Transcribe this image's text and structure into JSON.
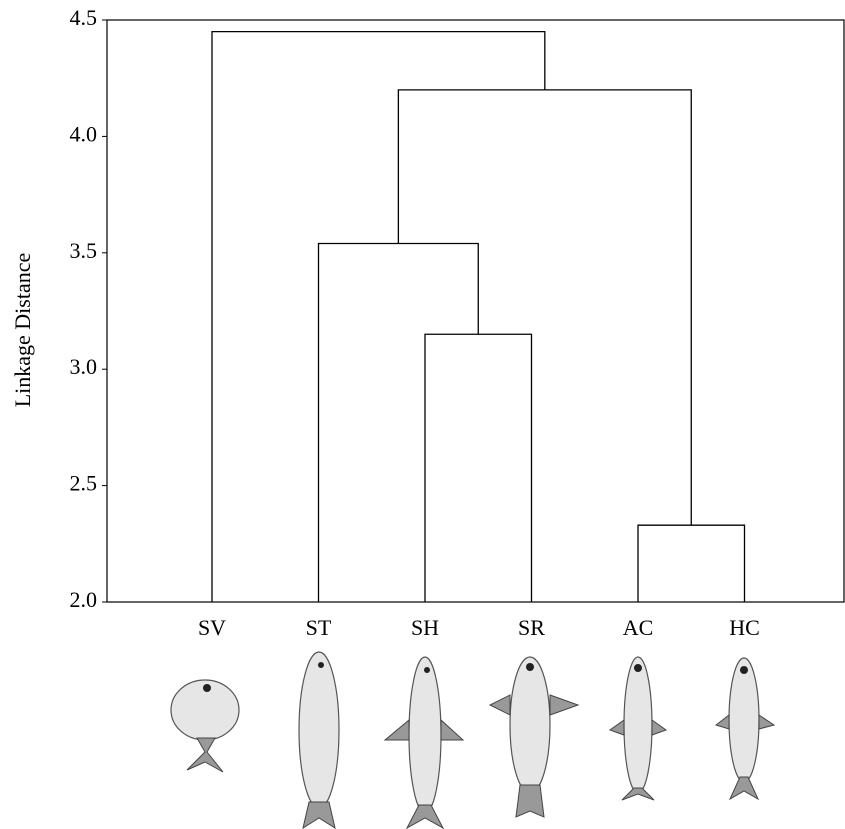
{
  "chart_data": {
    "type": "dendrogram",
    "y_label": "Linkage Distance",
    "leaves": [
      "SV",
      "ST",
      "SH",
      "SR",
      "AC",
      "HC"
    ],
    "merges": [
      {
        "children": [
          2,
          3
        ],
        "height": 3.15
      },
      {
        "children": [
          1,
          6
        ],
        "height": 3.54
      },
      {
        "children": [
          4,
          5
        ],
        "height": 2.33
      },
      {
        "children": [
          7,
          8
        ],
        "height": 4.2
      },
      {
        "children": [
          0,
          9
        ],
        "height": 4.45
      }
    ],
    "color": "#000000",
    "ylim": [
      2,
      4.5
    ],
    "yticks": [
      {
        "value": 2,
        "label": "2.0"
      },
      2.5,
      {
        "value": 3,
        "label": "3.0"
      },
      3.5,
      {
        "value": 4,
        "label": "4.0"
      },
      4.5
    ]
  }
}
